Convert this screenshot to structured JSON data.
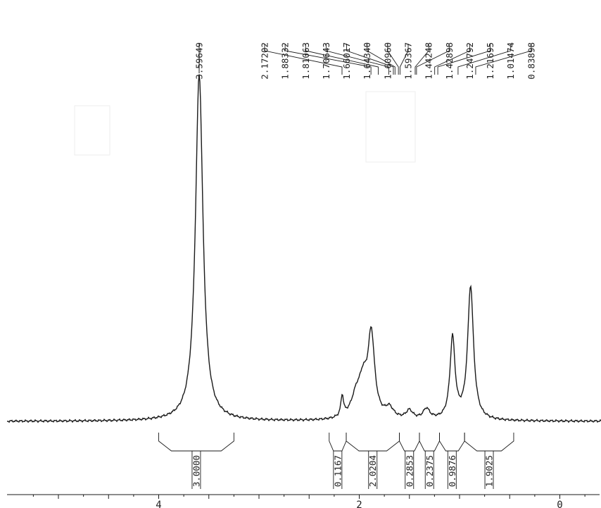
{
  "chart_data": {
    "type": "line",
    "title": "",
    "xlabel": "",
    "ylabel": "",
    "x_axis": {
      "reversed": true,
      "xlim": [
        5.3,
        -0.4
      ],
      "tick_labels": [
        "4",
        "2",
        "0"
      ]
    },
    "peak_labels": [
      "3.59649",
      "2.17202",
      "1.88332",
      "1.81063",
      "1.70643",
      "1.66017",
      "1.64340",
      "1.60960",
      "1.59367",
      "1.44248",
      "1.42898",
      "1.24792",
      "1.21695",
      "1.01474",
      "0.83898"
    ],
    "peaks": [
      {
        "ppm": 3.596,
        "height": 1.0,
        "width": 0.045
      },
      {
        "ppm": 2.17,
        "height": 0.06,
        "width": 0.016
      },
      {
        "ppm": 1.88,
        "height": 0.235,
        "width": 0.04
      },
      {
        "ppm": 1.96,
        "height": 0.09,
        "width": 0.05
      },
      {
        "ppm": 2.03,
        "height": 0.06,
        "width": 0.06
      },
      {
        "ppm": 1.7,
        "height": 0.03,
        "width": 0.05
      },
      {
        "ppm": 1.5,
        "height": 0.025,
        "width": 0.04
      },
      {
        "ppm": 1.33,
        "height": 0.03,
        "width": 0.04
      },
      {
        "ppm": 1.07,
        "height": 0.235,
        "width": 0.03
      },
      {
        "ppm": 0.89,
        "height": 0.385,
        "width": 0.035
      }
    ],
    "integrals": [
      {
        "label": "3.0000",
        "from": 4.0,
        "to": 3.25
      },
      {
        "label": "0.1167",
        "from": 2.3,
        "to": 2.13
      },
      {
        "label": "2.0204",
        "from": 2.13,
        "to": 1.6
      },
      {
        "label": "0.2853",
        "from": 1.6,
        "to": 1.4
      },
      {
        "label": "0.2375",
        "from": 1.4,
        "to": 1.2
      },
      {
        "label": "0.9876",
        "from": 1.2,
        "to": 0.95
      },
      {
        "label": "1.9025",
        "from": 0.95,
        "to": 0.46
      }
    ],
    "grid": false,
    "legend": "none"
  },
  "colors": {
    "trace": "#1a1a1a",
    "text": "#222222",
    "faint": "#9a9a9a"
  }
}
